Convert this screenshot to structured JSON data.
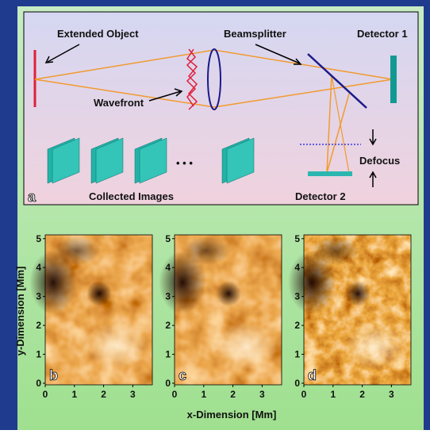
{
  "diagram": {
    "labels": {
      "extended_object": "Extended Object",
      "beamsplitter": "Beamsplitter",
      "detector1": "Detector 1",
      "wavefront": "Wavefront",
      "defocus": "Defocus",
      "collected_images": "Collected Images",
      "detector2": "Detector 2",
      "ellipsis": "• • •",
      "panel": "a"
    }
  },
  "images": {
    "panels": [
      "b",
      "c",
      "d"
    ],
    "xlabel": "x-Dimension [Mm]",
    "ylabel": "y-Dimension [Mm]",
    "xticks": [
      "0",
      "1",
      "2",
      "3"
    ],
    "yticks": [
      "0",
      "1",
      "2",
      "3",
      "4",
      "5"
    ]
  }
}
